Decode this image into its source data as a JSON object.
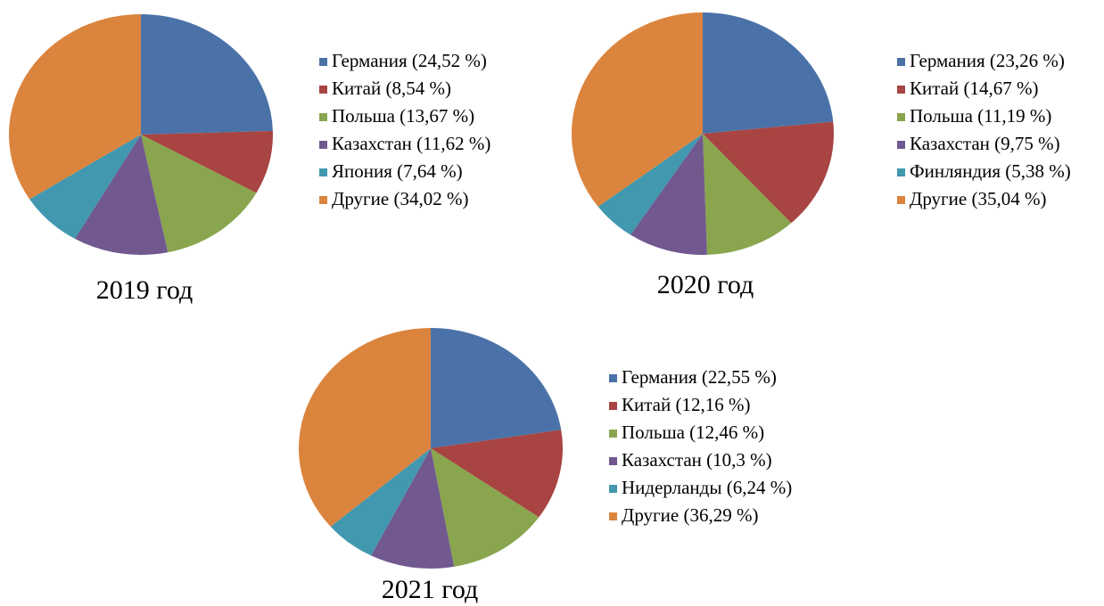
{
  "chart_data": [
    {
      "type": "pie",
      "title": "2019 год",
      "categories": [
        "Германия (24,52 %)",
        "Китай (8,54 %)",
        "Польша (13,67 %)",
        "Казахстан (11,62 %)",
        "Япония (7,64 %)",
        "Другие (34,02 %)"
      ],
      "values": [
        24.52,
        8.54,
        13.67,
        11.62,
        7.64,
        34.02
      ],
      "colors": [
        "#4a72a8",
        "#a84442",
        "#89a54e",
        "#71588f",
        "#4198af",
        "#db843d"
      ]
    },
    {
      "type": "pie",
      "title": "2020 год",
      "categories": [
        "Германия (23,26 %)",
        "Китай (14,67 %)",
        "Польша (11,19 %)",
        "Казахстан (9,75 %)",
        "Финляндия (5,38 %)",
        "Другие (35,04 %)"
      ],
      "values": [
        23.26,
        14.67,
        11.19,
        9.75,
        5.38,
        35.04
      ],
      "colors": [
        "#4a72a8",
        "#a84442",
        "#89a54e",
        "#71588f",
        "#4198af",
        "#db843d"
      ]
    },
    {
      "type": "pie",
      "title": "2021 год",
      "categories": [
        "Германия (22,55 %)",
        "Китай (12,16 %)",
        "Польша (12,46 %)",
        "Казахстан (10,3 %)",
        "Нидерланды (6,24 %)",
        "Другие (36,29 %)"
      ],
      "values": [
        22.55,
        12.16,
        12.46,
        10.3,
        6.24,
        36.29
      ],
      "colors": [
        "#4a72a8",
        "#a84442",
        "#89a54e",
        "#71588f",
        "#4198af",
        "#db843d"
      ]
    }
  ]
}
